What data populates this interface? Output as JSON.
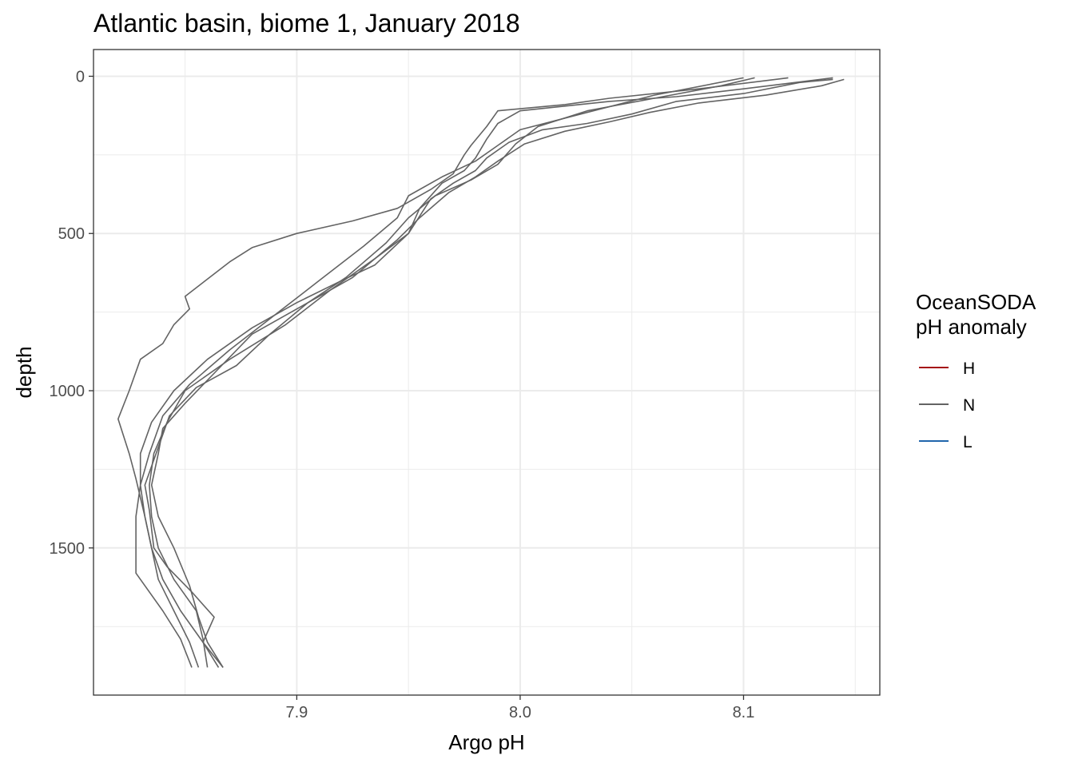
{
  "chart_data": {
    "type": "line",
    "title": "Atlantic basin, biome 1, January 2018",
    "xlabel": "Argo pH",
    "ylabel": "depth",
    "xlim": [
      7.809,
      8.161
    ],
    "ylim": [
      1968,
      -85
    ],
    "y_reversed": true,
    "x_ticks": [
      7.9,
      8.0,
      8.1
    ],
    "x_tick_labels": [
      "7.9",
      "8.0",
      "8.1"
    ],
    "x_minor": [
      7.85,
      7.95,
      8.05,
      8.15
    ],
    "y_ticks": [
      0,
      500,
      1000,
      1500
    ],
    "y_tick_labels": [
      "0",
      "500",
      "1000",
      "1500"
    ],
    "y_minor": [
      250,
      750,
      1250,
      1750
    ],
    "grid": true,
    "legend": {
      "title_line1": "OceanSODA",
      "title_line2": "pH anomaly",
      "position": "right",
      "entries": [
        {
          "label": "H",
          "color": "#a50f15"
        },
        {
          "label": "N",
          "color": "#636363"
        },
        {
          "label": "L",
          "color": "#2166ac"
        }
      ]
    },
    "series": [
      {
        "group": "N",
        "points": [
          [
            8.14,
            10
          ],
          [
            8.125,
            20
          ],
          [
            8.1,
            55
          ],
          [
            8.07,
            80
          ],
          [
            8.05,
            120
          ],
          [
            8.03,
            150
          ],
          [
            8.01,
            170
          ],
          [
            7.995,
            210
          ],
          [
            7.985,
            260
          ],
          [
            7.98,
            300
          ],
          [
            7.97,
            340
          ],
          [
            7.96,
            390
          ],
          [
            7.95,
            500
          ],
          [
            7.935,
            600
          ],
          [
            7.92,
            650
          ],
          [
            7.9,
            720
          ],
          [
            7.88,
            800
          ],
          [
            7.86,
            900
          ],
          [
            7.845,
            1000
          ],
          [
            7.835,
            1100
          ],
          [
            7.83,
            1200
          ],
          [
            7.83,
            1300
          ],
          [
            7.832,
            1400
          ],
          [
            7.835,
            1500
          ],
          [
            7.84,
            1600
          ],
          [
            7.848,
            1700
          ],
          [
            7.858,
            1800
          ],
          [
            7.865,
            1880
          ]
        ]
      },
      {
        "group": "N",
        "points": [
          [
            8.145,
            10
          ],
          [
            8.135,
            30
          ],
          [
            8.11,
            60
          ],
          [
            8.08,
            85
          ],
          [
            8.058,
            115
          ],
          [
            8.04,
            145
          ],
          [
            8.02,
            175
          ],
          [
            8.002,
            215
          ],
          [
            7.99,
            270
          ],
          [
            7.98,
            320
          ],
          [
            7.968,
            370
          ],
          [
            7.955,
            450
          ],
          [
            7.945,
            520
          ],
          [
            7.925,
            640
          ],
          [
            7.9,
            740
          ],
          [
            7.88,
            820
          ],
          [
            7.865,
            930
          ],
          [
            7.85,
            1040
          ],
          [
            7.84,
            1120
          ],
          [
            7.838,
            1200
          ],
          [
            7.835,
            1300
          ],
          [
            7.838,
            1400
          ],
          [
            7.845,
            1500
          ],
          [
            7.852,
            1620
          ],
          [
            7.856,
            1720
          ],
          [
            7.86,
            1800
          ],
          [
            7.867,
            1880
          ]
        ]
      },
      {
        "group": "N",
        "points": [
          [
            8.14,
            5
          ],
          [
            8.1,
            40
          ],
          [
            8.07,
            65
          ],
          [
            8.04,
            80
          ],
          [
            8.0,
            110
          ],
          [
            7.99,
            150
          ],
          [
            7.985,
            200
          ],
          [
            7.98,
            260
          ],
          [
            7.975,
            300
          ],
          [
            7.965,
            340
          ],
          [
            7.955,
            420
          ],
          [
            7.95,
            500
          ],
          [
            7.935,
            580
          ],
          [
            7.915,
            680
          ],
          [
            7.895,
            790
          ],
          [
            7.87,
            900
          ],
          [
            7.85,
            1000
          ],
          [
            7.842,
            1100
          ],
          [
            7.836,
            1200
          ],
          [
            7.834,
            1300
          ],
          [
            7.835,
            1400
          ],
          [
            7.838,
            1500
          ],
          [
            7.845,
            1600
          ],
          [
            7.855,
            1700
          ],
          [
            7.858,
            1790
          ],
          [
            7.86,
            1880
          ]
        ]
      },
      {
        "group": "N",
        "points": [
          [
            8.12,
            5
          ],
          [
            8.08,
            40
          ],
          [
            8.04,
            70
          ],
          [
            8.02,
            90
          ],
          [
            7.99,
            110
          ],
          [
            7.985,
            160
          ],
          [
            7.978,
            220
          ],
          [
            7.975,
            250
          ],
          [
            7.97,
            310
          ],
          [
            7.96,
            360
          ],
          [
            7.945,
            420
          ],
          [
            7.925,
            460
          ],
          [
            7.9,
            500
          ],
          [
            7.88,
            545
          ],
          [
            7.87,
            590
          ],
          [
            7.85,
            700
          ],
          [
            7.852,
            740
          ],
          [
            7.845,
            790
          ],
          [
            7.84,
            850
          ],
          [
            7.83,
            900
          ],
          [
            7.825,
            1000
          ],
          [
            7.82,
            1090
          ],
          [
            7.825,
            1200
          ],
          [
            7.828,
            1280
          ],
          [
            7.832,
            1400
          ],
          [
            7.835,
            1500
          ],
          [
            7.838,
            1600
          ],
          [
            7.845,
            1700
          ],
          [
            7.852,
            1800
          ],
          [
            7.856,
            1880
          ]
        ]
      },
      {
        "group": "N",
        "points": [
          [
            8.1,
            5
          ],
          [
            8.06,
            60
          ],
          [
            8.03,
            115
          ],
          [
            8.0,
            170
          ],
          [
            7.99,
            220
          ],
          [
            7.98,
            270
          ],
          [
            7.965,
            320
          ],
          [
            7.95,
            380
          ],
          [
            7.945,
            450
          ],
          [
            7.93,
            540
          ],
          [
            7.91,
            650
          ],
          [
            7.89,
            760
          ],
          [
            7.87,
            870
          ],
          [
            7.852,
            980
          ],
          [
            7.84,
            1080
          ],
          [
            7.834,
            1200
          ],
          [
            7.83,
            1300
          ],
          [
            7.828,
            1400
          ],
          [
            7.828,
            1480
          ],
          [
            7.828,
            1580
          ],
          [
            7.84,
            1700
          ],
          [
            7.848,
            1790
          ],
          [
            7.853,
            1880
          ]
        ]
      },
      {
        "group": "N",
        "points": [
          [
            8.105,
            5
          ],
          [
            8.09,
            30
          ],
          [
            8.06,
            70
          ],
          [
            8.03,
            110
          ],
          [
            8.008,
            160
          ],
          [
            7.998,
            215
          ],
          [
            7.99,
            280
          ],
          [
            7.978,
            330
          ],
          [
            7.962,
            380
          ],
          [
            7.95,
            450
          ],
          [
            7.94,
            530
          ],
          [
            7.922,
            640
          ],
          [
            7.905,
            720
          ],
          [
            7.888,
            820
          ],
          [
            7.873,
            920
          ],
          [
            7.855,
            990
          ],
          [
            7.843,
            1080
          ],
          [
            7.838,
            1180
          ],
          [
            7.832,
            1300
          ],
          [
            7.834,
            1380
          ],
          [
            7.836,
            1500
          ],
          [
            7.842,
            1560
          ],
          [
            7.853,
            1640
          ],
          [
            7.863,
            1720
          ],
          [
            7.858,
            1800
          ],
          [
            7.867,
            1880
          ]
        ]
      }
    ]
  }
}
